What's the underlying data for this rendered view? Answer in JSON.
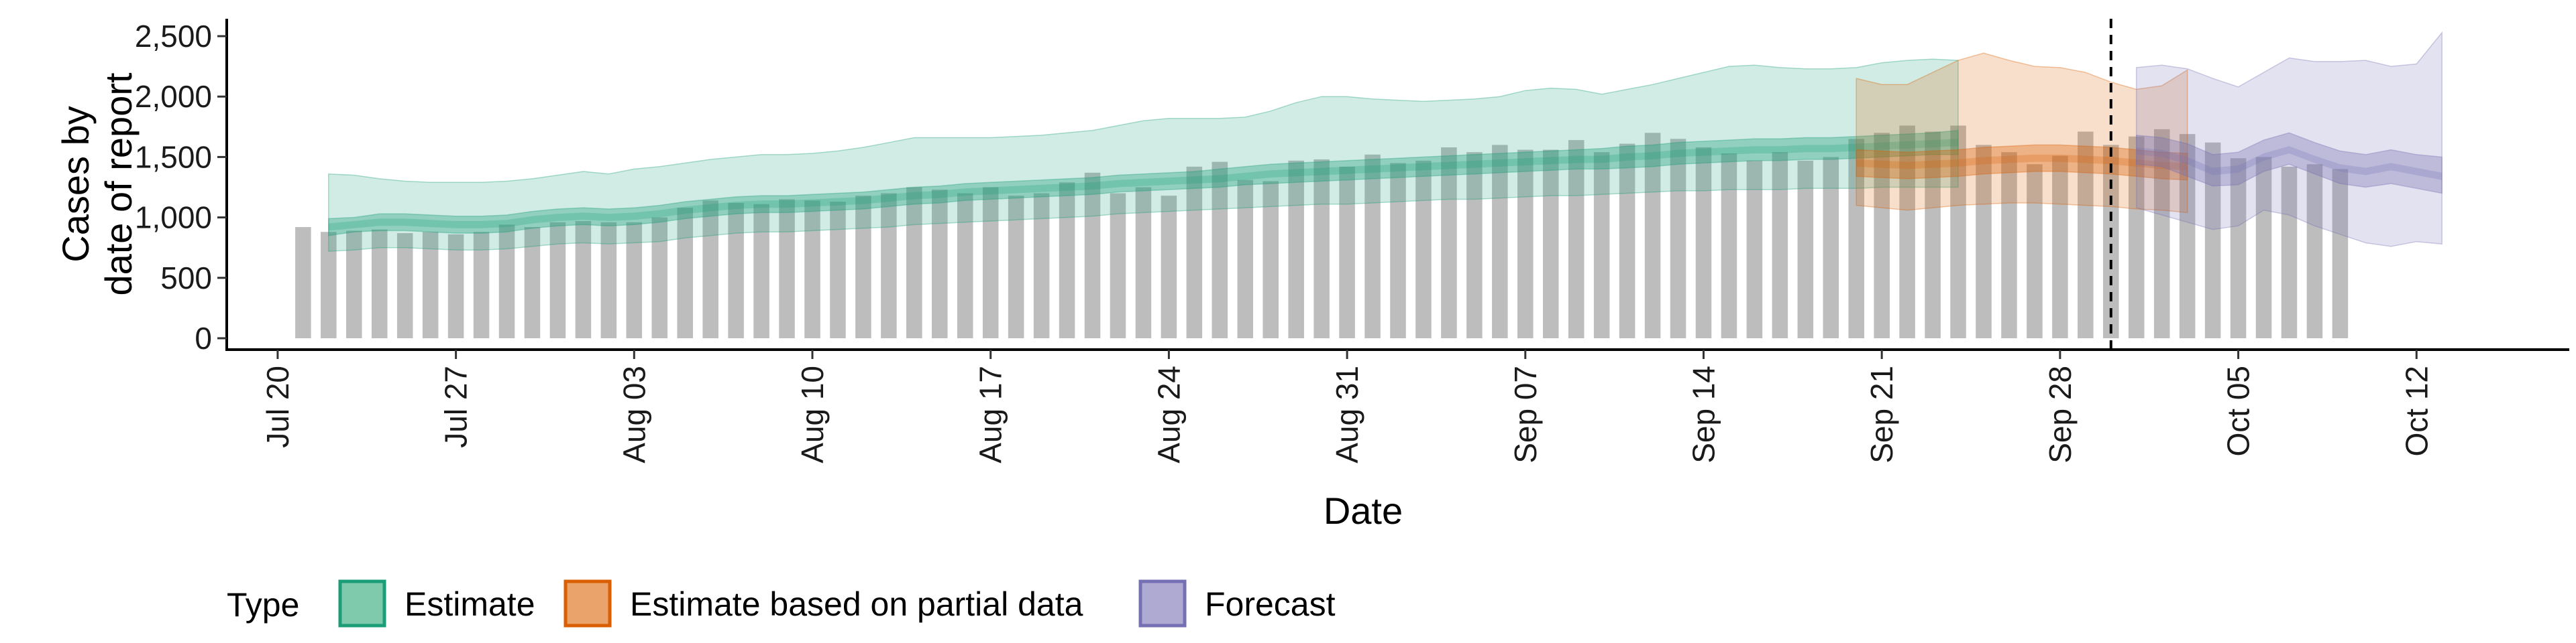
{
  "chart_data": {
    "type": "area",
    "xlabel": "Date",
    "ylabel": [
      "Cases by",
      "date of report"
    ],
    "ylim": [
      0,
      2600
    ],
    "yticks": [
      0,
      500,
      1000,
      1500,
      2000,
      2500
    ],
    "ytick_labels": [
      "0",
      "500",
      "1,000",
      "1,500",
      "2,000",
      "2,500"
    ],
    "xlim": [
      "2020-07-18",
      "2020-10-18"
    ],
    "xticks": [
      "2020-07-20",
      "2020-07-27",
      "2020-08-03",
      "2020-08-10",
      "2020-08-17",
      "2020-08-24",
      "2020-08-31",
      "2020-09-07",
      "2020-09-14",
      "2020-09-21",
      "2020-09-28",
      "2020-10-05",
      "2020-10-12"
    ],
    "xtick_labels": [
      "Jul 20",
      "Jul 27",
      "Aug 03",
      "Aug 10",
      "Aug 17",
      "Aug 24",
      "Aug 31",
      "Sep 07",
      "Sep 14",
      "Sep 21",
      "Sep 28",
      "Oct 05",
      "Oct 12"
    ],
    "forecast_date": "2020-09-30",
    "grid": false,
    "legend": {
      "title": "Type",
      "position": "bottom",
      "entries": [
        {
          "label": "Estimate",
          "fill": "#7fc9ad",
          "stroke": "#1b9e77"
        },
        {
          "label": "Estimate based on partial data",
          "fill": "#eaa36a",
          "stroke": "#d95f02"
        },
        {
          "label": "Forecast",
          "fill": "#aeaad2",
          "stroke": "#7570b3"
        }
      ]
    },
    "bar_color": "#bdbdbd",
    "reported_cases": {
      "start_date": "2020-07-21",
      "values": [
        920,
        880,
        890,
        900,
        870,
        880,
        860,
        880,
        940,
        920,
        960,
        970,
        960,
        960,
        1000,
        1080,
        1140,
        1120,
        1110,
        1150,
        1140,
        1130,
        1180,
        1200,
        1250,
        1230,
        1200,
        1250,
        1180,
        1200,
        1290,
        1370,
        1200,
        1250,
        1180,
        1420,
        1460,
        1310,
        1300,
        1470,
        1480,
        1420,
        1520,
        1450,
        1470,
        1580,
        1540,
        1600,
        1560,
        1560,
        1640,
        1540,
        1610,
        1700,
        1650,
        1580,
        1530,
        1470,
        1540,
        1470,
        1500,
        1650,
        1700,
        1760,
        1710,
        1760,
        1600,
        1540,
        1440,
        1510,
        1710,
        1600,
        1670,
        1730,
        1690,
        1620,
        1490,
        1500,
        1420,
        1440,
        1400
      ]
    },
    "series": [
      {
        "name": "Estimate",
        "color": "#1b9e77",
        "start_date": "2020-07-22",
        "median": [
          920,
          940,
          960,
          960,
          950,
          940,
          940,
          950,
          980,
          1000,
          1010,
          1000,
          1010,
          1030,
          1060,
          1080,
          1100,
          1110,
          1110,
          1120,
          1130,
          1140,
          1160,
          1180,
          1190,
          1210,
          1220,
          1230,
          1240,
          1250,
          1260,
          1280,
          1290,
          1300,
          1310,
          1320,
          1340,
          1360,
          1370,
          1380,
          1390,
          1400,
          1410,
          1420,
          1430,
          1440,
          1450,
          1460,
          1470,
          1480,
          1480,
          1500,
          1510,
          1530,
          1540,
          1550,
          1560,
          1560,
          1570,
          1570,
          1580,
          1590,
          1600,
          1610,
          1620
        ],
        "lower_50": [
          850,
          880,
          890,
          890,
          880,
          870,
          870,
          880,
          910,
          930,
          940,
          930,
          940,
          960,
          990,
          1010,
          1030,
          1040,
          1040,
          1050,
          1060,
          1070,
          1090,
          1110,
          1120,
          1140,
          1150,
          1160,
          1170,
          1180,
          1190,
          1210,
          1220,
          1230,
          1240,
          1250,
          1270,
          1280,
          1290,
          1300,
          1310,
          1320,
          1330,
          1340,
          1350,
          1360,
          1370,
          1380,
          1390,
          1400,
          1400,
          1410,
          1420,
          1440,
          1450,
          1460,
          1470,
          1470,
          1480,
          1480,
          1490,
          1500,
          1510,
          1520,
          1520
        ],
        "upper_50": [
          990,
          1000,
          1030,
          1030,
          1020,
          1010,
          1010,
          1020,
          1050,
          1070,
          1080,
          1070,
          1080,
          1100,
          1130,
          1150,
          1170,
          1180,
          1180,
          1190,
          1200,
          1210,
          1230,
          1250,
          1260,
          1280,
          1290,
          1300,
          1310,
          1320,
          1330,
          1350,
          1360,
          1370,
          1380,
          1400,
          1420,
          1440,
          1450,
          1460,
          1470,
          1480,
          1490,
          1500,
          1510,
          1520,
          1530,
          1540,
          1550,
          1560,
          1570,
          1590,
          1600,
          1620,
          1630,
          1640,
          1650,
          1650,
          1660,
          1660,
          1670,
          1680,
          1690,
          1700,
          1720
        ],
        "lower_90": [
          720,
          730,
          750,
          750,
          740,
          730,
          730,
          740,
          760,
          780,
          790,
          780,
          790,
          800,
          830,
          850,
          870,
          880,
          880,
          890,
          900,
          910,
          920,
          940,
          950,
          960,
          970,
          980,
          990,
          1000,
          1010,
          1030,
          1040,
          1050,
          1060,
          1070,
          1080,
          1090,
          1100,
          1110,
          1110,
          1120,
          1130,
          1140,
          1150,
          1150,
          1160,
          1170,
          1180,
          1180,
          1190,
          1200,
          1210,
          1220,
          1220,
          1230,
          1230,
          1230,
          1240,
          1240,
          1240,
          1250,
          1250,
          1250,
          1250
        ],
        "upper_90": [
          1360,
          1350,
          1320,
          1300,
          1290,
          1290,
          1290,
          1300,
          1320,
          1350,
          1380,
          1360,
          1400,
          1420,
          1450,
          1480,
          1500,
          1520,
          1520,
          1530,
          1550,
          1580,
          1620,
          1660,
          1660,
          1660,
          1660,
          1670,
          1680,
          1700,
          1720,
          1760,
          1800,
          1820,
          1820,
          1820,
          1830,
          1880,
          1950,
          2000,
          2000,
          1980,
          1970,
          1960,
          1970,
          1980,
          2000,
          2050,
          2070,
          2060,
          2020,
          2060,
          2100,
          2150,
          2200,
          2250,
          2260,
          2240,
          2230,
          2230,
          2240,
          2280,
          2300,
          2310,
          2300
        ]
      },
      {
        "name": "Estimate based on partial data",
        "color": "#d95f02",
        "start_date": "2020-09-20",
        "median": [
          1450,
          1440,
          1430,
          1440,
          1450,
          1470,
          1480,
          1490,
          1490,
          1480,
          1470,
          1450,
          1430,
          1420
        ],
        "lower_50": [
          1340,
          1330,
          1320,
          1330,
          1340,
          1360,
          1370,
          1380,
          1380,
          1370,
          1360,
          1340,
          1320,
          1310
        ],
        "upper_50": [
          1560,
          1550,
          1540,
          1550,
          1560,
          1580,
          1590,
          1600,
          1600,
          1590,
          1580,
          1560,
          1540,
          1530
        ],
        "lower_90": [
          1100,
          1080,
          1060,
          1080,
          1100,
          1110,
          1120,
          1120,
          1110,
          1100,
          1090,
          1070,
          1060,
          1040
        ],
        "upper_90": [
          2150,
          2100,
          2100,
          2200,
          2300,
          2360,
          2300,
          2250,
          2240,
          2200,
          2120,
          2060,
          2090,
          2220
        ]
      },
      {
        "name": "Forecast",
        "color": "#7570b3",
        "start_date": "2020-10-01",
        "median": [
          1550,
          1530,
          1470,
          1380,
          1400,
          1500,
          1560,
          1480,
          1410,
          1380,
          1420,
          1380,
          1340
        ],
        "lower_50": [
          1440,
          1420,
          1340,
          1260,
          1270,
          1380,
          1440,
          1360,
          1280,
          1250,
          1280,
          1240,
          1200
        ],
        "upper_50": [
          1680,
          1660,
          1610,
          1520,
          1540,
          1640,
          1700,
          1620,
          1550,
          1520,
          1560,
          1520,
          1500
        ],
        "lower_90": [
          1080,
          1020,
          960,
          900,
          930,
          1060,
          1020,
          930,
          860,
          790,
          760,
          800,
          780
        ],
        "upper_90": [
          2240,
          2260,
          2230,
          2150,
          2080,
          2200,
          2320,
          2290,
          2290,
          2300,
          2250,
          2270,
          2530
        ]
      }
    ]
  }
}
